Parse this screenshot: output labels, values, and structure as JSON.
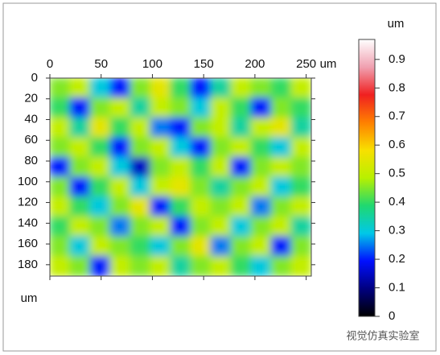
{
  "chart_data": {
    "type": "heatmap",
    "x_unit": "um",
    "y_label": "um",
    "xlim": [
      0,
      255
    ],
    "ylim": [
      0,
      191
    ],
    "xticks": [
      0,
      50,
      100,
      150,
      200,
      250
    ],
    "yticks": [
      0,
      20,
      40,
      60,
      80,
      100,
      120,
      140,
      160,
      180
    ],
    "z": [
      [
        0.45,
        0.5,
        0.3,
        0.2,
        0.45,
        0.55,
        0.4,
        0.2,
        0.35,
        0.5,
        0.45,
        0.4,
        0.5
      ],
      [
        0.4,
        0.2,
        0.45,
        0.5,
        0.35,
        0.5,
        0.45,
        0.3,
        0.5,
        0.4,
        0.2,
        0.45,
        0.4
      ],
      [
        0.5,
        0.35,
        0.55,
        0.4,
        0.5,
        0.25,
        0.2,
        0.45,
        0.5,
        0.35,
        0.5,
        0.55,
        0.35
      ],
      [
        0.45,
        0.5,
        0.4,
        0.2,
        0.45,
        0.5,
        0.3,
        0.2,
        0.45,
        0.5,
        0.4,
        0.3,
        0.5
      ],
      [
        0.2,
        0.45,
        0.5,
        0.3,
        0.15,
        0.45,
        0.5,
        0.4,
        0.5,
        0.2,
        0.45,
        0.5,
        0.45
      ],
      [
        0.45,
        0.2,
        0.4,
        0.5,
        0.3,
        0.5,
        0.55,
        0.45,
        0.35,
        0.45,
        0.5,
        0.3,
        0.4
      ],
      [
        0.5,
        0.4,
        0.3,
        0.45,
        0.55,
        0.2,
        0.4,
        0.5,
        0.45,
        0.5,
        0.25,
        0.45,
        0.5
      ],
      [
        0.4,
        0.5,
        0.45,
        0.25,
        0.45,
        0.5,
        0.2,
        0.45,
        0.5,
        0.3,
        0.45,
        0.5,
        0.35
      ],
      [
        0.45,
        0.3,
        0.5,
        0.45,
        0.4,
        0.3,
        0.45,
        0.55,
        0.25,
        0.45,
        0.5,
        0.2,
        0.45
      ],
      [
        0.5,
        0.45,
        0.2,
        0.5,
        0.45,
        0.5,
        0.35,
        0.45,
        0.5,
        0.4,
        0.3,
        0.45,
        0.5
      ]
    ],
    "colorbar": {
      "label": "um",
      "lim": [
        0,
        0.97
      ],
      "ticks": [
        0,
        0.1,
        0.2,
        0.3,
        0.4,
        0.5,
        0.6,
        0.7,
        0.8,
        0.9
      ],
      "colors": [
        "#000000",
        "#000080",
        "#0010ff",
        "#00c8e8",
        "#20d870",
        "#b8f000",
        "#f8e000",
        "#ff8000",
        "#f02020",
        "#f0a0b0",
        "#ffffff"
      ]
    }
  },
  "watermark": "视觉仿真实验室"
}
